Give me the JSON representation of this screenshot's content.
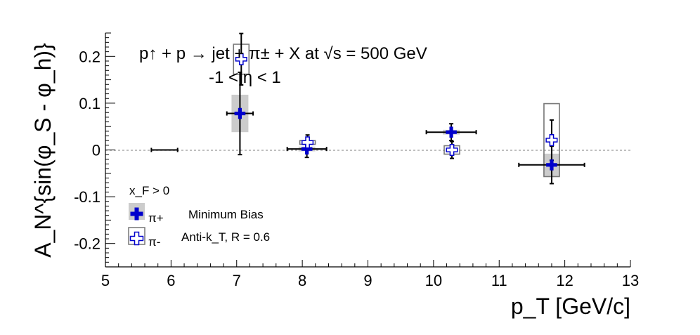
{
  "chart_data": {
    "type": "scatter",
    "title": "p↑ + p → jet + π± + X at √s = 500 GeV",
    "subtitle": "-1 < η < 1",
    "xlabel": "p_T [GeV/c]",
    "ylabel": "A_N^{sin(φ_S - φ_h)}",
    "xlim": [
      5,
      13
    ],
    "ylim": [
      -0.25,
      0.25
    ],
    "x_ticks": [
      5,
      6,
      7,
      8,
      9,
      10,
      11,
      12,
      13
    ],
    "y_ticks": [
      -0.2,
      -0.1,
      0,
      0.1,
      0.2
    ],
    "x_tick_labels": [
      "5",
      "6",
      "7",
      "8",
      "9",
      "10",
      "11",
      "12",
      "13"
    ],
    "y_tick_labels": [
      "-0.2",
      "-0.1",
      "0",
      "0.1",
      "0.2"
    ],
    "zero_line": true,
    "grid": false,
    "legend": {
      "placement": "bottom-left",
      "header": "x_F > 0",
      "entries": [
        {
          "label": "π+",
          "note": "Minimum Bias"
        },
        {
          "label": "π-",
          "note": "Anti-k_T, R = 0.6"
        }
      ]
    },
    "series": [
      {
        "name": "π+",
        "marker": "filled-cross",
        "color": "#0000cc",
        "syst_color": "#cccccc",
        "points": [
          {
            "x": 5.9,
            "y": 0.0,
            "xerr": 0.2,
            "yerr": 0.0,
            "syst": 0.0
          },
          {
            "x": 7.05,
            "y": 0.078,
            "xerr": 0.2,
            "yerr": 0.088,
            "syst": 0.04
          },
          {
            "x": 8.07,
            "y": 0.002,
            "xerr": 0.3,
            "yerr": 0.018,
            "syst": 0.005
          },
          {
            "x": 10.27,
            "y": 0.038,
            "xerr": 0.38,
            "yerr": 0.018,
            "syst": 0.005
          },
          {
            "x": 11.8,
            "y": -0.032,
            "xerr": 0.5,
            "yerr": 0.04,
            "syst": 0.024
          }
        ]
      },
      {
        "name": "π-",
        "marker": "open-cross",
        "color": "#0000cc",
        "syst_color": "#777777",
        "points": [
          {
            "x": 7.07,
            "y": 0.194,
            "xerr": 0.0,
            "yerr": 0.055,
            "syst": 0.032
          },
          {
            "x": 8.08,
            "y": 0.016,
            "xerr": 0.0,
            "yerr": 0.016,
            "syst": 0.004
          },
          {
            "x": 10.28,
            "y": 0.0,
            "xerr": 0.0,
            "yerr": 0.018,
            "syst": 0.009
          },
          {
            "x": 11.8,
            "y": 0.021,
            "xerr": 0.0,
            "yerr": 0.043,
            "syst": 0.078
          }
        ]
      }
    ]
  }
}
